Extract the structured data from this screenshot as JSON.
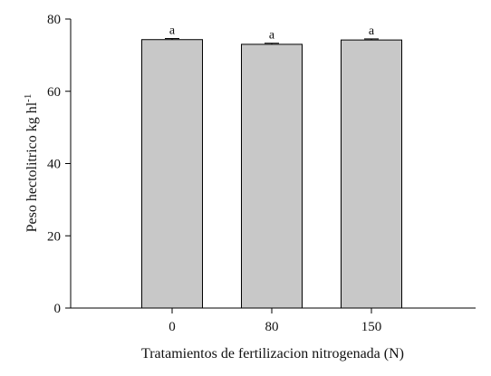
{
  "chart_data": {
    "type": "bar",
    "title": "",
    "xlabel": "Tratamientos de fertilizacion nitrogenada (N)",
    "ylabel": {
      "main": "Peso hectolitrico kg hl",
      "superscript": "-1"
    },
    "categories": [
      "0",
      "80",
      "150"
    ],
    "values": [
      74.3,
      73.0,
      74.2
    ],
    "errors": [
      0.3,
      0.3,
      0.3
    ],
    "significance_letters": [
      "a",
      "a",
      "a"
    ],
    "ylim": [
      0,
      80
    ],
    "yticks": [
      "0",
      "20",
      "40",
      "60",
      "80"
    ],
    "grid": false,
    "legend": "none",
    "colors": {
      "bar_fill": "#c8c8c8",
      "bar_stroke": "#000000",
      "axis": "#000000"
    }
  }
}
